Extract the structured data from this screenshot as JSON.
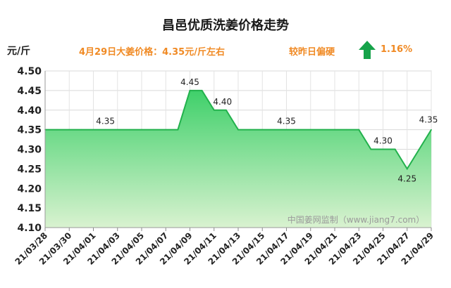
{
  "title": "昌邑优质洗姜价格走势",
  "unit_label": "元/斤",
  "price_text": "4月29日大姜价格：4.35元/斤左右",
  "compare_text": "较昨日偏硬",
  "change_percent": "1.16%",
  "watermark": "中国姜网监制（www.jiang7.com）",
  "colors": {
    "line": "#22b14c",
    "fill_top": "#3fd06a",
    "fill_bottom": "#d9f2d0",
    "accent": "#f08a24",
    "arrow": "#16a34a"
  },
  "chart_data": {
    "type": "area",
    "title": "昌邑优质洗姜价格走势",
    "ylabel": "元/斤",
    "ylim": [
      4.1,
      4.5
    ],
    "yticks": [
      "4.10",
      "4.15",
      "4.20",
      "4.25",
      "4.30",
      "4.35",
      "4.40",
      "4.45",
      "4.50"
    ],
    "x_tick_labels": [
      "21/03/28",
      "21/03/30",
      "21/04/01",
      "21/04/03",
      "21/04/05",
      "21/04/07",
      "21/04/09",
      "21/04/11",
      "21/04/13",
      "21/04/15",
      "21/04/17",
      "21/04/19",
      "21/04/21",
      "21/04/23",
      "21/04/25",
      "21/04/27",
      "21/04/29"
    ],
    "x": [
      "21/03/28",
      "21/03/29",
      "21/03/30",
      "21/03/31",
      "21/04/01",
      "21/04/02",
      "21/04/03",
      "21/04/04",
      "21/04/05",
      "21/04/06",
      "21/04/07",
      "21/04/08",
      "21/04/09",
      "21/04/10",
      "21/04/11",
      "21/04/12",
      "21/04/13",
      "21/04/14",
      "21/04/15",
      "21/04/16",
      "21/04/17",
      "21/04/18",
      "21/04/19",
      "21/04/20",
      "21/04/21",
      "21/04/22",
      "21/04/23",
      "21/04/24",
      "21/04/25",
      "21/04/26",
      "21/04/27",
      "21/04/28",
      "21/04/29"
    ],
    "values": [
      4.35,
      4.35,
      4.35,
      4.35,
      4.35,
      4.35,
      4.35,
      4.35,
      4.35,
      4.35,
      4.35,
      4.35,
      4.45,
      4.45,
      4.4,
      4.4,
      4.35,
      4.35,
      4.35,
      4.35,
      4.35,
      4.35,
      4.35,
      4.35,
      4.35,
      4.35,
      4.35,
      4.3,
      4.3,
      4.3,
      4.25,
      4.3,
      4.35
    ],
    "data_labels": [
      {
        "x": "21/04/02",
        "text": "4.35"
      },
      {
        "x": "21/04/09",
        "text": "4.45"
      },
      {
        "x": "21/04/11",
        "text": "4.40"
      },
      {
        "x": "21/04/17",
        "text": "4.35"
      },
      {
        "x": "21/04/25",
        "text": "4.30"
      },
      {
        "x": "21/04/27",
        "text": "4.25"
      },
      {
        "x": "21/04/29",
        "text": "4.35"
      }
    ],
    "grid": true
  }
}
